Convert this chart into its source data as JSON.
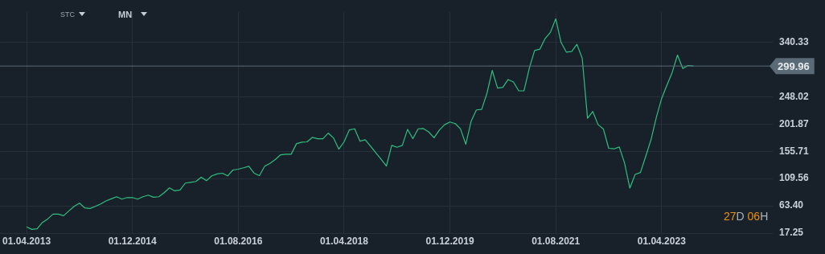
{
  "chart_data": {
    "type": "line",
    "annotations": [
      "STC",
      "MN",
      "27D 06H"
    ],
    "x": [
      "2013-04",
      "2013-05",
      "2013-06",
      "2013-07",
      "2013-08",
      "2013-09",
      "2013-10",
      "2013-11",
      "2013-12",
      "2014-01",
      "2014-02",
      "2014-03",
      "2014-04",
      "2014-05",
      "2014-06",
      "2014-07",
      "2014-08",
      "2014-09",
      "2014-10",
      "2014-11",
      "2014-12",
      "2015-01",
      "2015-02",
      "2015-03",
      "2015-04",
      "2015-05",
      "2015-06",
      "2015-07",
      "2015-08",
      "2015-09",
      "2015-10",
      "2015-11",
      "2015-12",
      "2016-01",
      "2016-02",
      "2016-03",
      "2016-04",
      "2016-05",
      "2016-06",
      "2016-07",
      "2016-08",
      "2016-09",
      "2016-10",
      "2016-11",
      "2016-12",
      "2017-01",
      "2017-02",
      "2017-03",
      "2017-04",
      "2017-05",
      "2017-06",
      "2017-07",
      "2017-08",
      "2017-09",
      "2017-10",
      "2017-11",
      "2017-12",
      "2018-01",
      "2018-02",
      "2018-03",
      "2018-04",
      "2018-05",
      "2018-06",
      "2018-07",
      "2018-08",
      "2018-09",
      "2018-10",
      "2018-11",
      "2018-12",
      "2019-01",
      "2019-02",
      "2019-03",
      "2019-04",
      "2019-05",
      "2019-06",
      "2019-07",
      "2019-08",
      "2019-09",
      "2019-10",
      "2019-11",
      "2019-12",
      "2020-01",
      "2020-02",
      "2020-03",
      "2020-04",
      "2020-05",
      "2020-06",
      "2020-07",
      "2020-08",
      "2020-09",
      "2020-10",
      "2020-11",
      "2020-12",
      "2021-01",
      "2021-02",
      "2021-03",
      "2021-04",
      "2021-05",
      "2021-06",
      "2021-07",
      "2021-08",
      "2021-09",
      "2021-10",
      "2021-11",
      "2021-12",
      "2022-01",
      "2022-02",
      "2022-03",
      "2022-04",
      "2022-05",
      "2022-06",
      "2022-07",
      "2022-08",
      "2022-09",
      "2022-10",
      "2022-11",
      "2022-12",
      "2023-01",
      "2023-02",
      "2023-03",
      "2023-04",
      "2023-05",
      "2023-06",
      "2023-07",
      "2023-08",
      "2023-09",
      "2023-10"
    ],
    "series": [
      {
        "color": "#2fbf7f",
        "values": [
          27.7,
          23.6,
          24.5,
          35.3,
          41.2,
          49.4,
          49.4,
          46.7,
          54.8,
          62.5,
          68.0,
          59.8,
          58.9,
          62.5,
          66.6,
          71.6,
          75.2,
          78.8,
          74.7,
          77.4,
          77.4,
          74.7,
          78.8,
          81.5,
          77.9,
          78.8,
          85.6,
          93.7,
          88.7,
          90.1,
          101.9,
          103.2,
          104.6,
          111.8,
          105.9,
          114.1,
          117.3,
          118.6,
          114.1,
          124.0,
          125.4,
          127.7,
          130.4,
          118.6,
          114.5,
          130.4,
          135.3,
          141.7,
          149.8,
          150.7,
          150.7,
          168.4,
          171.1,
          171.6,
          179.2,
          177.0,
          177.0,
          186.5,
          178.3,
          159.3,
          171.6,
          191.9,
          193.7,
          172.9,
          175.2,
          164.4,
          153.0,
          142.1,
          130.8,
          165.7,
          162.5,
          165.7,
          192.8,
          177.0,
          193.7,
          194.2,
          188.3,
          178.5,
          191.6,
          200.7,
          205.3,
          202.6,
          193.5,
          167.5,
          206.2,
          225.7,
          226.6,
          253.9,
          292.6,
          262.6,
          263.9,
          277.1,
          273.0,
          258.0,
          258.0,
          296.2,
          326.2,
          328.5,
          346.7,
          357.2,
          379.9,
          339.9,
          323.5,
          324.4,
          336.7,
          313.0,
          211.6,
          223.0,
          200.7,
          193.5,
          160.7,
          159.8,
          163.0,
          135.7,
          93.4,
          116.6,
          119.8,
          147.1,
          175.3,
          213.0,
          244.8,
          267.6,
          289.0,
          318.5,
          295.8,
          300.8,
          300.0
        ]
      }
    ],
    "xlim": [
      "2012-11",
      "2025-01"
    ],
    "xticks": [
      {
        "value": "2013-04",
        "label": "01.04.2013"
      },
      {
        "value": "2014-12",
        "label": "01.12.2014"
      },
      {
        "value": "2016-08",
        "label": "01.08.2016"
      },
      {
        "value": "2018-04",
        "label": "01.04.2018"
      },
      {
        "value": "2019-12",
        "label": "01.12.2019"
      },
      {
        "value": "2021-08",
        "label": "01.08.2021"
      },
      {
        "value": "2023-04",
        "label": "01.04.2023"
      }
    ],
    "ylim": [
      17.25,
      391
    ],
    "yticks": [
      17.25,
      {
        "value": 63.4,
        "label": "63.40"
      },
      109.56,
      155.71,
      201.87,
      248.02,
      340.33
    ],
    "ref_lines": [
      {
        "axis": "y",
        "value": 299.96,
        "label": "299.96",
        "color": "#5b6a77"
      }
    ],
    "grid": true,
    "legend": false,
    "marker": "none",
    "line_style": "solid"
  }
}
